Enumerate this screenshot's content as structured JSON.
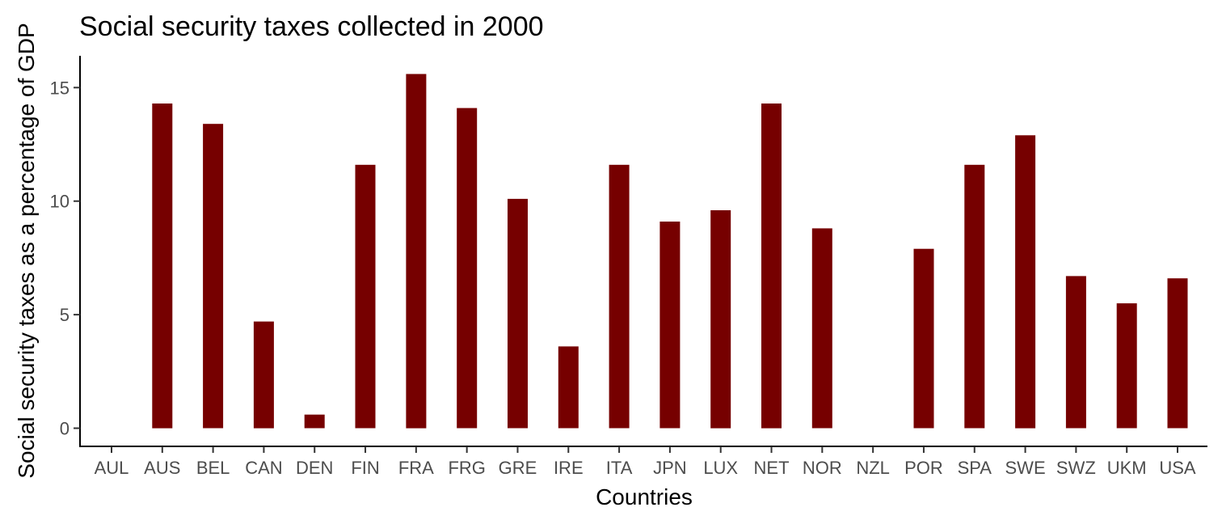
{
  "chart_data": {
    "type": "bar",
    "title": "Social security taxes collected in 2000",
    "xlabel": "Countries",
    "ylabel": "Social security taxes as a percentage of GDP",
    "categories": [
      "AUL",
      "AUS",
      "BEL",
      "CAN",
      "DEN",
      "FIN",
      "FRA",
      "FRG",
      "GRE",
      "IRE",
      "ITA",
      "JPN",
      "LUX",
      "NET",
      "NOR",
      "NZL",
      "POR",
      "SPA",
      "SWE",
      "SWZ",
      "UKM",
      "USA"
    ],
    "values": [
      0,
      14.3,
      13.4,
      4.7,
      0.6,
      11.6,
      15.6,
      14.1,
      10.1,
      3.6,
      11.6,
      9.1,
      9.6,
      14.3,
      8.8,
      0,
      7.9,
      11.6,
      12.9,
      6.7,
      5.5,
      6.6
    ],
    "yticks": [
      0,
      5,
      10,
      15
    ],
    "ylim": [
      -0.8,
      16.4
    ],
    "bar_color": "#760000",
    "grid": false,
    "legend": "none"
  }
}
